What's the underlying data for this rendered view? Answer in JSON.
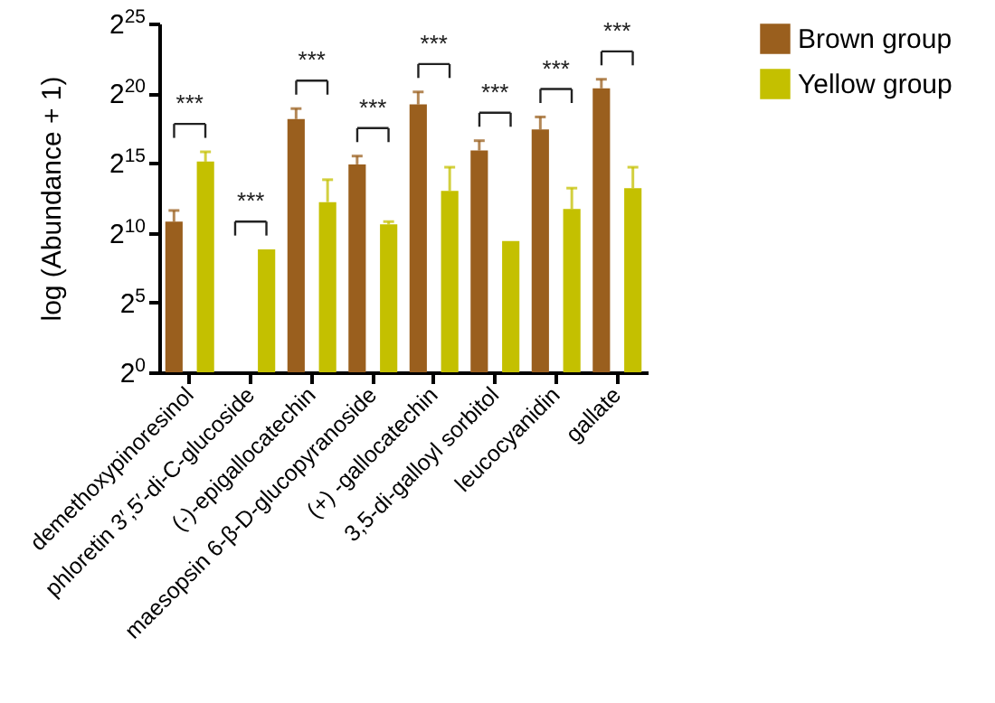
{
  "chart_data": {
    "type": "bar",
    "ylabel": "log  (Abundance + 1)",
    "categories": [
      "demethoxypinoresinol",
      "phloretin 3′,5′-di-C-glucoside",
      "(-)-epigallocatechin",
      "maesopsin 6-β-D-glucopyranoside",
      "(+) -gallocatechin",
      "3,5-di-galloyl sorbitol",
      "leucocyanidin",
      "gallate"
    ],
    "series": [
      {
        "name": "Brown group",
        "color": "#9a5f1e",
        "values": [
          1780,
          null,
          291000,
          30600,
          602000,
          61100,
          173000,
          1340000
        ],
        "errors": [
          [
            1780,
            3100
          ],
          null,
          [
            291000,
            489000
          ],
          [
            30600,
            46300
          ],
          [
            602000,
            1120000
          ],
          [
            61100,
            99300
          ],
          [
            173000,
            323000
          ],
          [
            1340000,
            2100000
          ]
        ]
      },
      {
        "name": "Yellow group",
        "color": "#c4c000",
        "values": [
          35100,
          446,
          4700,
          1550,
          8190,
          676,
          3330,
          9410
        ],
        "errors": [
          [
            35100,
            57100
          ],
          null,
          [
            4700,
            14300
          ],
          [
            1550,
            1780
          ],
          [
            8190,
            26600
          ],
          null,
          [
            3330,
            9410
          ],
          [
            9410,
            26600
          ]
        ]
      }
    ],
    "ylim": [
      1,
      33554432
    ],
    "yticks": [
      {
        "value": 1,
        "label": "2$^{0}$"
      },
      {
        "value": 32,
        "label": "2$^{5}$"
      },
      {
        "value": 1024,
        "label": "2$^{10}$"
      },
      {
        "value": 32768,
        "label": "2$^{15}$"
      },
      {
        "value": 1048576,
        "label": "2$^{20}$"
      },
      {
        "value": 33554432,
        "label": "2$^{25}$"
      }
    ],
    "log": "y",
    "annotations": [
      "***",
      "***",
      "***",
      "***",
      "***",
      "***",
      "***",
      "***"
    ],
    "legend": "top right"
  }
}
